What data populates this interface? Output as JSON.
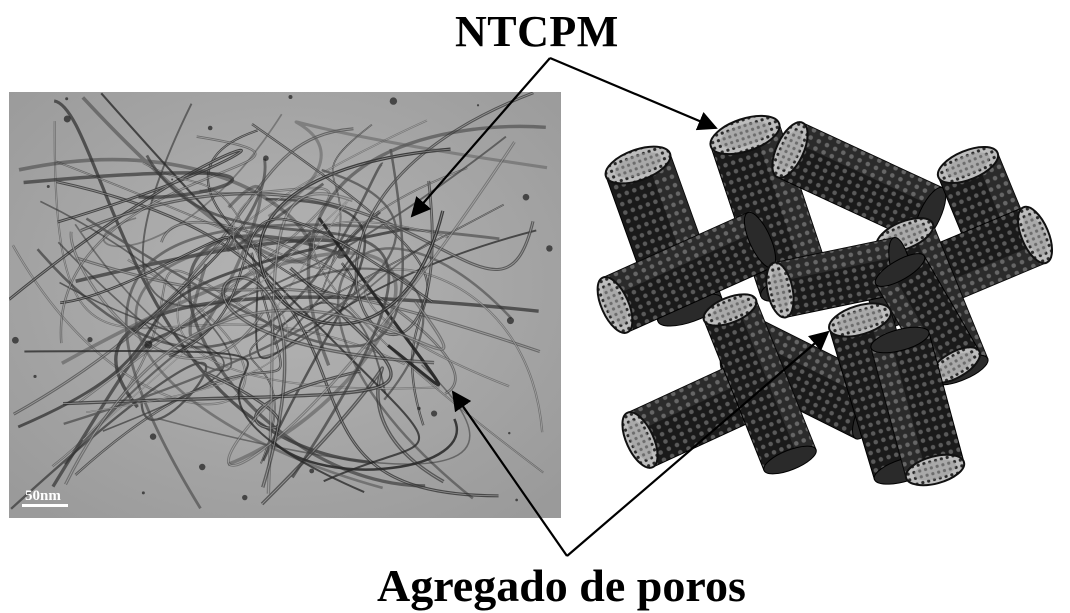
{
  "labels": {
    "top": "NTCPM",
    "bottom": "Agregado de poros"
  },
  "micrograph": {
    "scale_bar_label": "50nm"
  },
  "colors": {
    "micrograph_background": "#a7a7a7",
    "tube_dark": "#1c1c1c",
    "tube_light": "#8a8a8a",
    "arrow": "#000000"
  }
}
